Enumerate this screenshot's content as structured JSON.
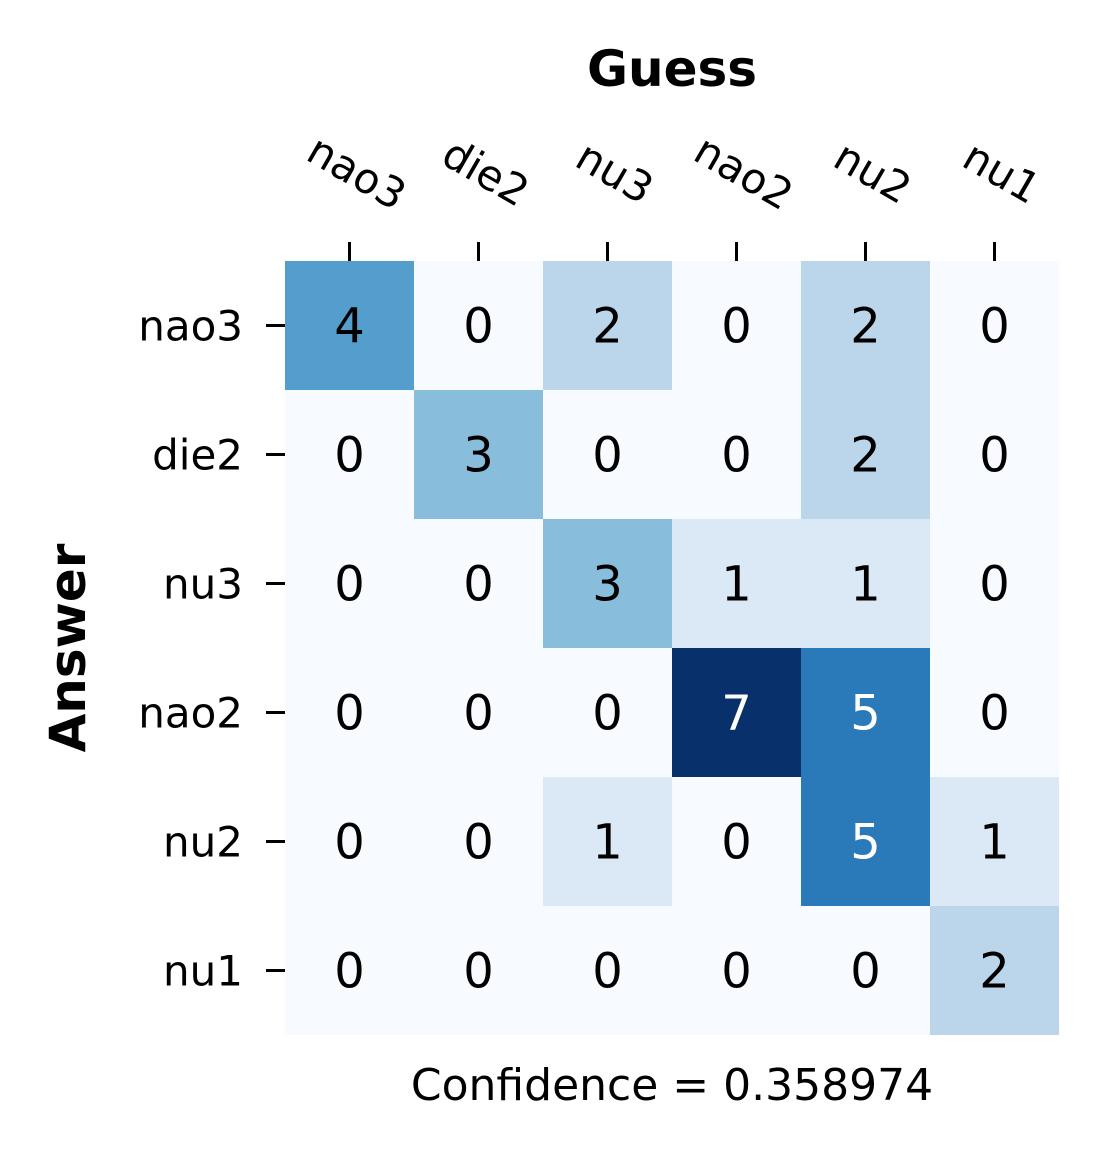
{
  "chart_data": {
    "type": "heatmap",
    "xlabel": "Guess",
    "ylabel": "Answer",
    "footer": "Confidence = 0.358974",
    "x_categories": [
      "nao3",
      "die2",
      "nu3",
      "nao2",
      "nu2",
      "nu1"
    ],
    "y_categories": [
      "nao3",
      "die2",
      "nu3",
      "nao2",
      "nu2",
      "nu1"
    ],
    "values": [
      [
        4,
        0,
        2,
        0,
        2,
        0
      ],
      [
        0,
        3,
        0,
        0,
        2,
        0
      ],
      [
        0,
        0,
        3,
        1,
        1,
        0
      ],
      [
        0,
        0,
        0,
        7,
        5,
        0
      ],
      [
        0,
        0,
        1,
        0,
        5,
        1
      ],
      [
        0,
        0,
        0,
        0,
        0,
        2
      ]
    ],
    "colormap": "Blues",
    "value_range": [
      0,
      7
    ],
    "colorbar": false,
    "grid": false
  }
}
